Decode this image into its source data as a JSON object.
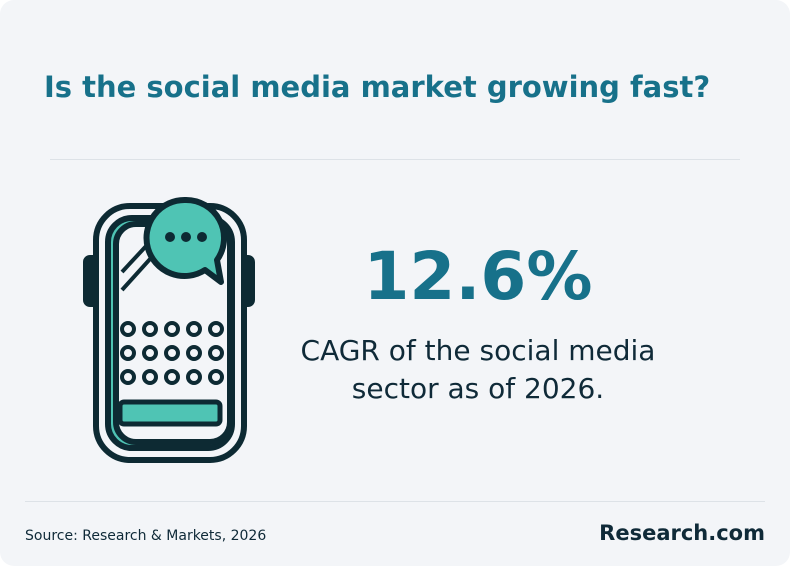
{
  "title": "Is the social media market growing fast?",
  "stat": "12.6%",
  "description": "CAGR of the social media sector as of 2026.",
  "source": "Source: Research & Markets, 2026",
  "brand": "Research.com"
}
